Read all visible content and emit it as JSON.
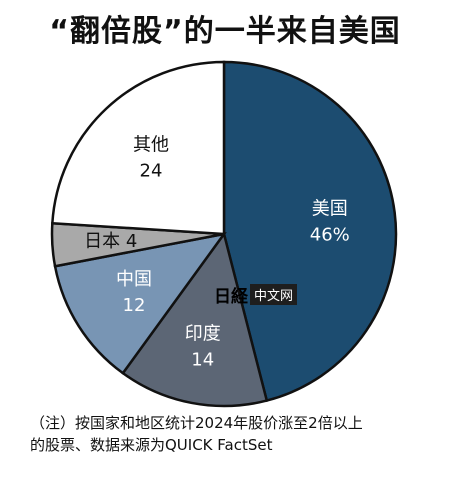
{
  "title": "“翻倍股”的一半来自美国",
  "chart_data": {
    "type": "pie",
    "title": "“翻倍股”的一半来自美国",
    "slices": [
      {
        "label": "美国",
        "value": 46,
        "value_text": "46%",
        "color": "#1c4c70",
        "text_color": "#ffffff"
      },
      {
        "label": "印度",
        "value": 14,
        "value_text": "14",
        "color": "#5c6675",
        "text_color": "#ffffff"
      },
      {
        "label": "中国",
        "value": 12,
        "value_text": "12",
        "color": "#7895b4",
        "text_color": "#ffffff"
      },
      {
        "label": "日本",
        "value": 4,
        "value_text": "4",
        "color": "#a9a9a9",
        "text_color": "#111111"
      },
      {
        "label": "其他",
        "value": 24,
        "value_text": "24",
        "color": "#ffffff",
        "text_color": "#111111"
      }
    ]
  },
  "watermark": {
    "logo": "日経",
    "text": "中文网"
  },
  "note": {
    "line1": "（注）按国家和地区统计2024年股价涨至2倍以上",
    "line2": "的股票、数据来源为QUICK FactSet"
  }
}
